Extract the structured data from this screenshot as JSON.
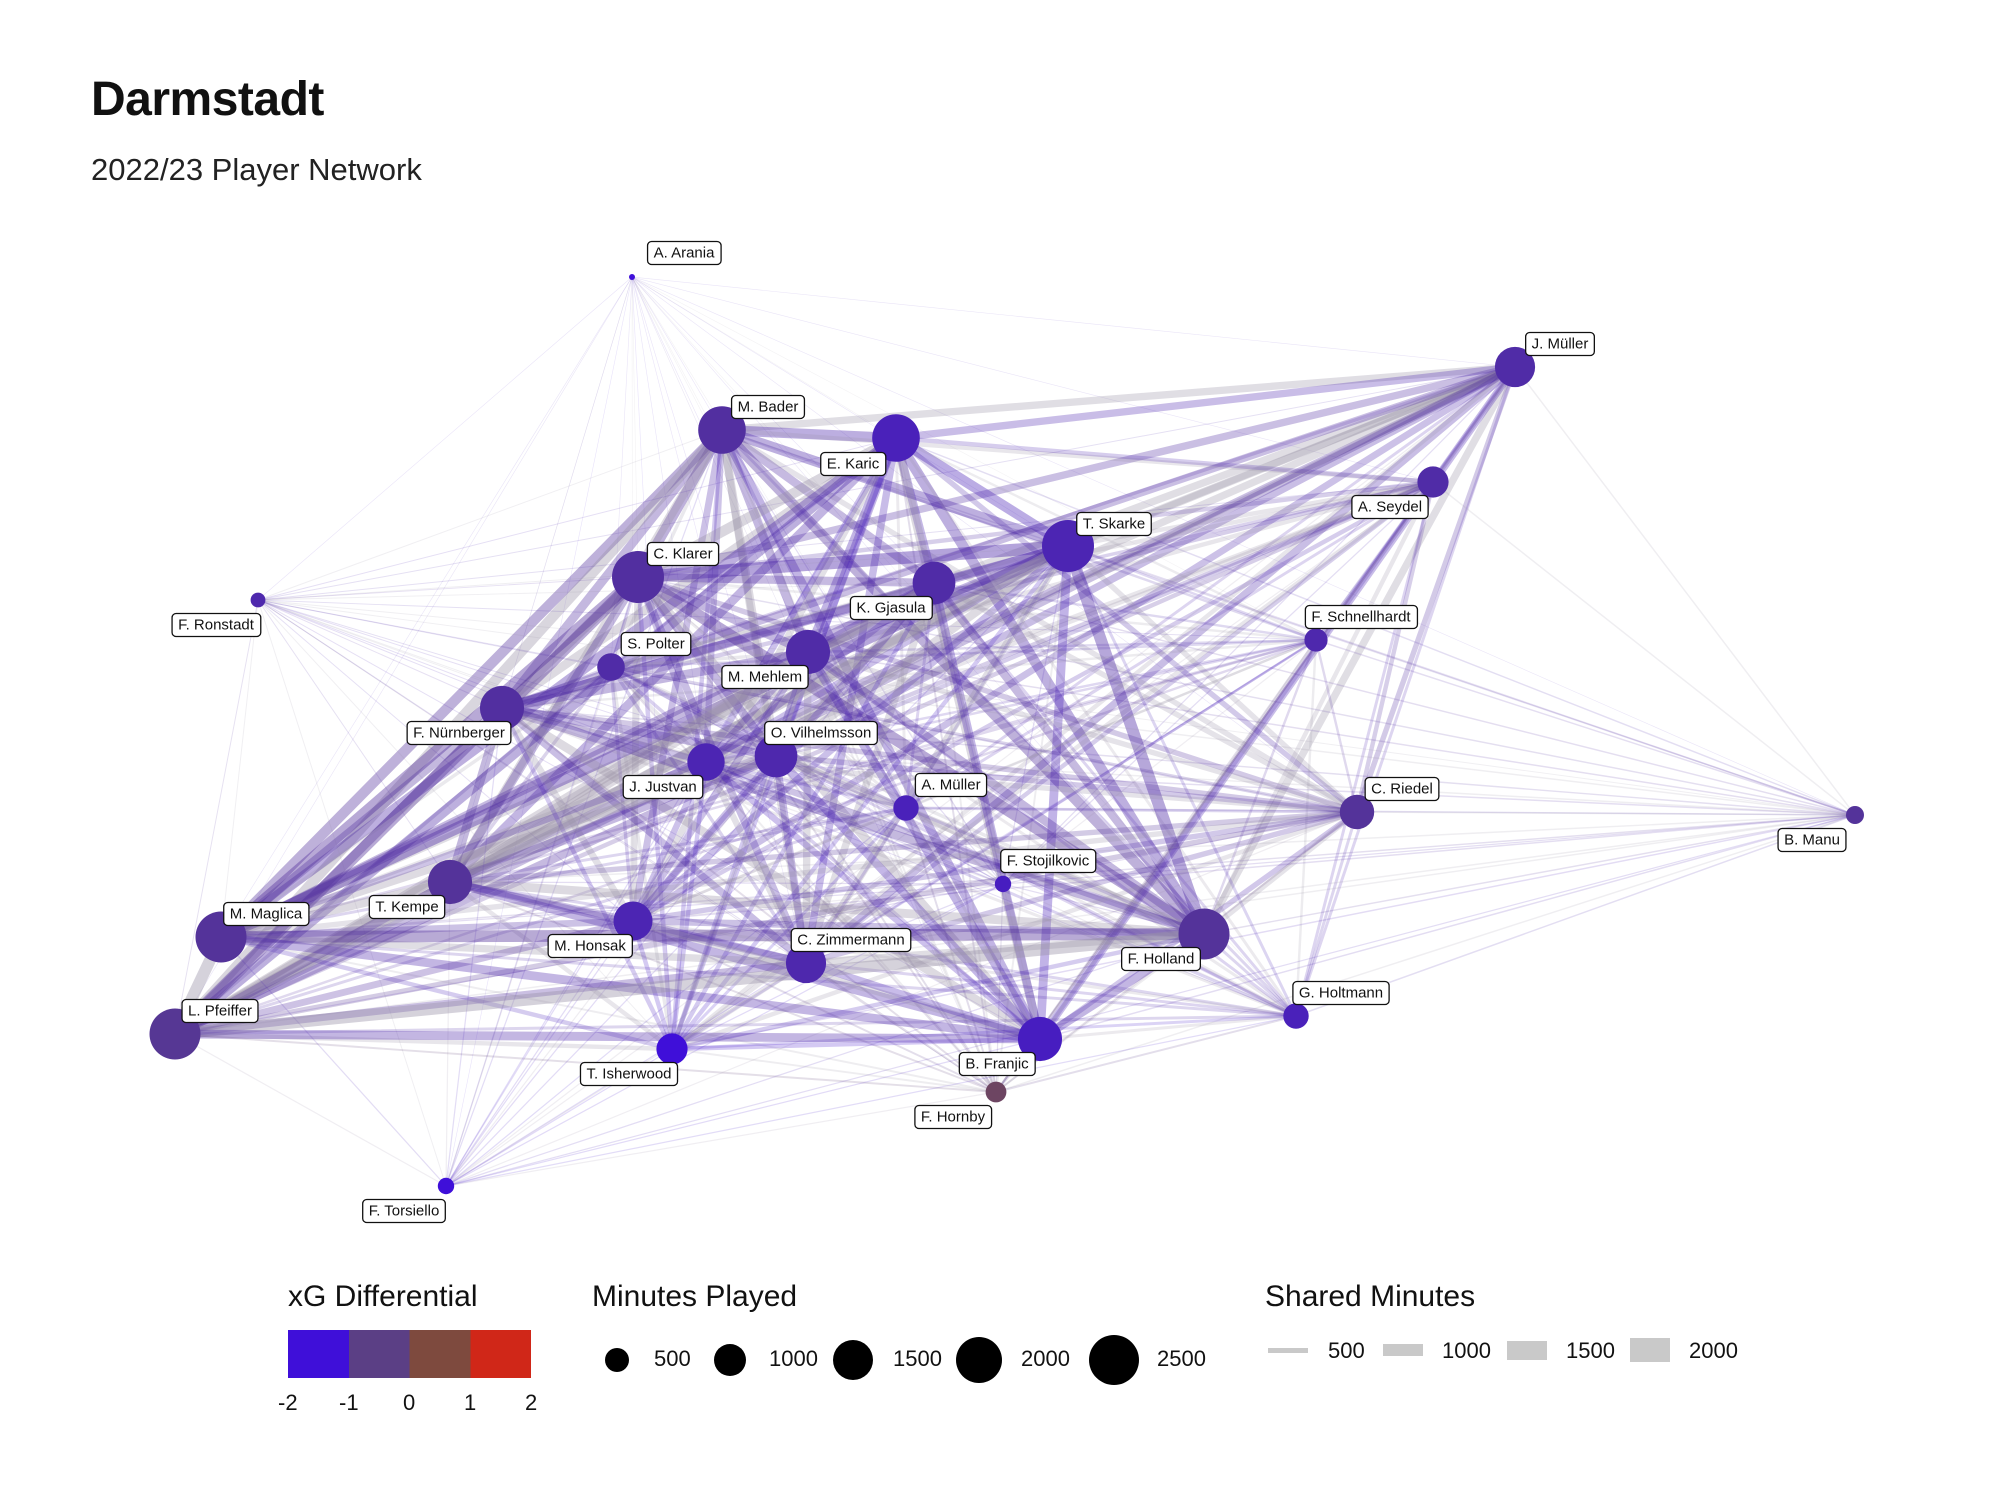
{
  "header": {
    "title": "Darmstadt",
    "subtitle": "2022/23 Player Network"
  },
  "colors": {
    "xg_scale": [
      "#3f0fd9",
      "#5b3f85",
      "#7e4a3e",
      "#d02718"
    ]
  },
  "legend": {
    "xg": {
      "title": "xG Differential",
      "ticks": [
        "-2",
        "-1",
        "0",
        "1",
        "2"
      ]
    },
    "minutes": {
      "title": "Minutes Played",
      "items": [
        "500",
        "1000",
        "1500",
        "2000",
        "2500"
      ]
    },
    "shared": {
      "title": "Shared Minutes",
      "items": [
        "500",
        "1000",
        "1500",
        "2000"
      ]
    }
  },
  "chart_data": {
    "type": "network",
    "nodes": [
      {
        "id": "A. Arania",
        "minutes": 20,
        "xg": -2.0
      },
      {
        "id": "J. Müller",
        "minutes": 1500,
        "xg": -1.2
      },
      {
        "id": "M. Bader",
        "minutes": 2100,
        "xg": -1.1
      },
      {
        "id": "E. Karic",
        "minutes": 2100,
        "xg": -1.5
      },
      {
        "id": "A. Seydel",
        "minutes": 900,
        "xg": -1.2
      },
      {
        "id": "T. Skarke",
        "minutes": 2500,
        "xg": -1.4
      },
      {
        "id": "C. Klarer",
        "minutes": 2500,
        "xg": -1.1
      },
      {
        "id": "F. Ronstadt",
        "minutes": 200,
        "xg": -1.3
      },
      {
        "id": "K. Gjasula",
        "minutes": 1700,
        "xg": -1.2
      },
      {
        "id": "F. Schnellhardt",
        "minutes": 500,
        "xg": -1.3
      },
      {
        "id": "S. Polter",
        "minutes": 700,
        "xg": -1.2
      },
      {
        "id": "M. Mehlem",
        "minutes": 1800,
        "xg": -1.2
      },
      {
        "id": "F. Nürnberger",
        "minutes": 1800,
        "xg": -1.1
      },
      {
        "id": "O. Vilhelmsson",
        "minutes": 1700,
        "xg": -1.3
      },
      {
        "id": "J. Justvan",
        "minutes": 1300,
        "xg": -1.4
      },
      {
        "id": "A. Müller",
        "minutes": 600,
        "xg": -1.5
      },
      {
        "id": "C. Riedel",
        "minutes": 1100,
        "xg": -1.0
      },
      {
        "id": "B. Manu",
        "minutes": 300,
        "xg": -1.0
      },
      {
        "id": "F. Stojilkovic",
        "minutes": 250,
        "xg": -1.6
      },
      {
        "id": "T. Kempe",
        "minutes": 1800,
        "xg": -1.0
      },
      {
        "id": "M. Maglica",
        "minutes": 2400,
        "xg": -1.0
      },
      {
        "id": "M. Honsak",
        "minutes": 1400,
        "xg": -1.4
      },
      {
        "id": "C. Zimmermann",
        "minutes": 1500,
        "xg": -1.3
      },
      {
        "id": "F. Holland",
        "minutes": 2400,
        "xg": -1.0
      },
      {
        "id": "G. Holtmann",
        "minutes": 600,
        "xg": -1.5
      },
      {
        "id": "L. Pfeiffer",
        "minutes": 2400,
        "xg": -0.9
      },
      {
        "id": "T. Isherwood",
        "minutes": 900,
        "xg": -2.0
      },
      {
        "id": "B. Franjic",
        "minutes": 1800,
        "xg": -1.6
      },
      {
        "id": "F. Hornby",
        "minutes": 400,
        "xg": 0.0
      },
      {
        "id": "F. Torsiello",
        "minutes": 250,
        "xg": -2.0
      }
    ]
  }
}
